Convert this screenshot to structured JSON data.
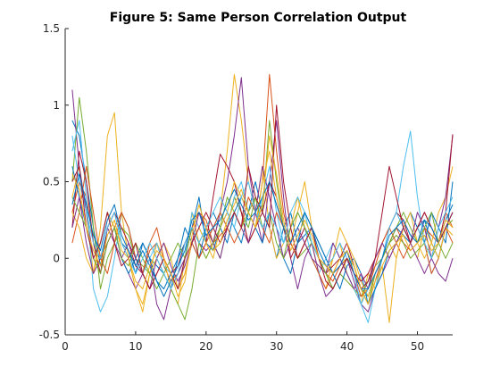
{
  "chart_data": {
    "type": "line",
    "title": "Figure 5: Same Person Correlation Output",
    "xlabel": "",
    "ylabel": "",
    "xlim": [
      0,
      55
    ],
    "ylim": [
      -0.5,
      1.5
    ],
    "xticks": [
      0,
      10,
      20,
      30,
      40,
      50
    ],
    "yticks": [
      -0.5,
      0,
      0.5,
      1,
      1.5
    ],
    "ytick_labels": [
      "-0.5",
      "0",
      "0.5",
      "1",
      "1.5"
    ],
    "grid": false,
    "legend": "none",
    "x": [
      1,
      2,
      3,
      4,
      5,
      6,
      7,
      8,
      9,
      10,
      11,
      12,
      13,
      14,
      15,
      16,
      17,
      18,
      19,
      20,
      21,
      22,
      23,
      24,
      25,
      26,
      27,
      28,
      29,
      30,
      31,
      32,
      33,
      34,
      35,
      36,
      37,
      38,
      39,
      40,
      41,
      42,
      43,
      44,
      45,
      46,
      47,
      48,
      49,
      50,
      51,
      52,
      53,
      54,
      55
    ],
    "series": [
      {
        "color": "#0072BD",
        "values": [
          0.9,
          0.8,
          0.5,
          0.2,
          -0.05,
          0.2,
          0.3,
          0.1,
          0.05,
          -0.1,
          0.1,
          0.0,
          -0.05,
          -0.1,
          -0.2,
          0.0,
          0.1,
          0.2,
          0.4,
          0.1,
          0.05,
          0.2,
          0.3,
          0.2,
          0.1,
          0.3,
          0.5,
          0.3,
          0.2,
          0.0,
          0.2,
          0.3,
          0.1,
          0.15,
          0.2,
          0.1,
          0.0,
          -0.1,
          -0.05,
          0.0,
          -0.1,
          -0.2,
          -0.25,
          -0.1,
          0.0,
          0.1,
          0.2,
          0.15,
          0.1,
          0.2,
          0.25,
          0.1,
          0.0,
          0.2,
          0.3
        ]
      },
      {
        "color": "#D95319",
        "values": [
          0.3,
          0.5,
          0.4,
          0.1,
          0.0,
          0.1,
          0.2,
          0.3,
          0.2,
          0.0,
          -0.1,
          0.05,
          0.1,
          -0.05,
          -0.15,
          -0.1,
          0.0,
          0.2,
          0.3,
          0.25,
          0.1,
          0.15,
          0.2,
          0.4,
          0.3,
          0.1,
          0.2,
          0.5,
          1.2,
          0.7,
          0.3,
          0.1,
          0.0,
          0.1,
          0.2,
          0.0,
          -0.1,
          -0.15,
          -0.05,
          0.0,
          -0.1,
          -0.2,
          -0.3,
          -0.15,
          0.0,
          0.1,
          0.2,
          0.1,
          0.05,
          0.1,
          0.2,
          0.15,
          0.1,
          0.3,
          0.2
        ]
      },
      {
        "color": "#EDB120",
        "values": [
          0.4,
          0.6,
          0.3,
          -0.1,
          0.2,
          0.8,
          0.95,
          0.3,
          0.0,
          -0.2,
          -0.35,
          -0.1,
          0.1,
          0.0,
          -0.2,
          -0.3,
          0.0,
          0.3,
          0.1,
          0.0,
          0.1,
          0.3,
          0.7,
          1.2,
          0.9,
          0.5,
          0.3,
          0.6,
          0.2,
          0.0,
          0.1,
          0.2,
          0.4,
          0.2,
          0.1,
          -0.1,
          -0.2,
          0.0,
          0.1,
          -0.1,
          -0.2,
          -0.3,
          -0.1,
          -0.2,
          -0.05,
          -0.42,
          0.0,
          0.2,
          0.1,
          0.0,
          0.2,
          0.1,
          0.3,
          0.4,
          0.6
        ]
      },
      {
        "color": "#7E2F8E",
        "values": [
          1.1,
          0.6,
          0.3,
          0.0,
          -0.1,
          0.1,
          0.2,
          0.0,
          -0.1,
          -0.2,
          -0.1,
          0.0,
          -0.3,
          -0.4,
          -0.2,
          -0.1,
          0.0,
          0.2,
          0.1,
          0.05,
          0.1,
          0.3,
          0.5,
          0.8,
          1.18,
          0.6,
          0.3,
          0.1,
          0.5,
          0.9,
          0.4,
          0.0,
          -0.2,
          0.0,
          0.1,
          -0.1,
          -0.25,
          -0.2,
          -0.1,
          0.0,
          -0.15,
          -0.3,
          -0.35,
          -0.2,
          -0.1,
          0.0,
          0.1,
          0.2,
          0.1,
          0.0,
          -0.1,
          0.0,
          0.2,
          0.4,
          0.8
        ]
      },
      {
        "color": "#77AC30",
        "values": [
          0.5,
          1.05,
          0.7,
          0.2,
          -0.2,
          0.0,
          0.1,
          0.2,
          0.15,
          0.0,
          -0.05,
          -0.1,
          0.0,
          -0.1,
          -0.2,
          -0.3,
          -0.4,
          -0.2,
          0.1,
          0.2,
          0.1,
          0.0,
          0.2,
          0.4,
          0.3,
          0.2,
          0.4,
          0.3,
          0.9,
          0.5,
          0.2,
          0.1,
          0.0,
          0.05,
          0.1,
          0.0,
          -0.1,
          -0.2,
          -0.1,
          -0.15,
          -0.2,
          -0.25,
          -0.15,
          -0.05,
          0.0,
          0.1,
          0.15,
          0.1,
          0.0,
          0.05,
          0.1,
          0.0,
          0.1,
          0.2,
          0.25
        ]
      },
      {
        "color": "#4DBEEE",
        "values": [
          0.7,
          0.9,
          0.4,
          -0.2,
          -0.35,
          -0.25,
          0.0,
          0.3,
          0.2,
          0.0,
          -0.1,
          0.0,
          0.1,
          -0.05,
          -0.1,
          -0.2,
          0.0,
          0.3,
          0.2,
          0.1,
          0.2,
          0.3,
          0.2,
          0.4,
          0.5,
          0.3,
          0.2,
          0.4,
          0.6,
          0.3,
          0.1,
          0.2,
          0.3,
          0.2,
          0.0,
          -0.1,
          0.0,
          0.1,
          0.0,
          -0.1,
          -0.2,
          -0.3,
          -0.42,
          -0.2,
          0.0,
          0.2,
          0.3,
          0.6,
          0.83,
          0.4,
          0.1,
          -0.1,
          0.0,
          0.2,
          0.3
        ]
      },
      {
        "color": "#A2142F",
        "values": [
          0.2,
          0.7,
          0.5,
          0.1,
          -0.1,
          0.2,
          0.3,
          0.2,
          0.1,
          -0.05,
          -0.1,
          -0.2,
          -0.1,
          0.0,
          -0.1,
          -0.05,
          0.1,
          0.2,
          0.0,
          0.1,
          0.4,
          0.68,
          0.6,
          0.5,
          0.3,
          0.1,
          0.2,
          0.3,
          0.5,
          0.4,
          0.2,
          0.0,
          0.1,
          0.2,
          0.1,
          0.0,
          -0.1,
          -0.05,
          0.0,
          0.1,
          -0.05,
          -0.2,
          -0.15,
          0.0,
          0.1,
          0.2,
          0.3,
          0.25,
          0.1,
          0.2,
          0.3,
          0.2,
          0.1,
          0.3,
          0.81
        ]
      },
      {
        "color": "#0072BD",
        "values": [
          0.6,
          0.4,
          0.2,
          0.0,
          0.1,
          0.3,
          0.2,
          0.0,
          -0.1,
          0.0,
          0.1,
          0.0,
          -0.15,
          -0.2,
          -0.1,
          0.0,
          0.2,
          0.1,
          0.0,
          0.2,
          0.3,
          0.2,
          0.1,
          0.3,
          0.4,
          0.3,
          0.2,
          0.1,
          0.3,
          0.2,
          0.0,
          -0.1,
          0.1,
          0.3,
          0.2,
          0.1,
          0.0,
          -0.1,
          -0.2,
          -0.05,
          0.0,
          -0.1,
          -0.3,
          -0.2,
          -0.1,
          0.05,
          0.1,
          0.2,
          0.3,
          0.2,
          0.1,
          0.3,
          0.2,
          0.1,
          0.5
        ]
      },
      {
        "color": "#D95319",
        "values": [
          0.1,
          0.3,
          0.6,
          0.3,
          0.0,
          -0.1,
          0.1,
          0.3,
          0.2,
          0.0,
          -0.1,
          0.1,
          0.2,
          0.0,
          -0.1,
          -0.2,
          -0.1,
          0.1,
          0.0,
          0.1,
          0.2,
          0.3,
          0.2,
          0.1,
          0.2,
          0.4,
          0.3,
          0.2,
          0.1,
          0.3,
          0.2,
          0.1,
          0.0,
          0.1,
          0.0,
          -0.1,
          -0.2,
          -0.1,
          0.0,
          0.05,
          -0.1,
          -0.25,
          -0.2,
          -0.05,
          0.1,
          0.2,
          0.1,
          0.0,
          0.1,
          0.2,
          0.1,
          -0.1,
          0.0,
          0.2,
          0.1
        ]
      },
      {
        "color": "#EDB120",
        "values": [
          0.3,
          0.2,
          0.0,
          -0.1,
          0.1,
          0.3,
          0.2,
          0.1,
          0.0,
          -0.2,
          -0.3,
          -0.1,
          0.0,
          0.1,
          0.0,
          -0.2,
          -0.1,
          0.1,
          0.2,
          0.1,
          0.0,
          0.2,
          0.3,
          0.5,
          0.4,
          0.3,
          0.2,
          0.5,
          0.7,
          0.4,
          0.2,
          0.1,
          0.3,
          0.5,
          0.2,
          0.0,
          -0.1,
          0.0,
          0.2,
          0.1,
          0.0,
          -0.15,
          -0.25,
          -0.1,
          0.0,
          0.1,
          0.0,
          0.2,
          0.3,
          0.1,
          0.0,
          0.1,
          0.0,
          0.2,
          0.15
        ]
      },
      {
        "color": "#7E2F8E",
        "values": [
          0.2,
          0.4,
          0.1,
          -0.1,
          0.0,
          0.2,
          0.1,
          0.0,
          0.1,
          0.0,
          -0.1,
          -0.2,
          0.0,
          0.1,
          -0.05,
          -0.15,
          -0.05,
          0.1,
          0.3,
          0.2,
          0.1,
          0.0,
          0.2,
          0.3,
          0.2,
          0.1,
          0.3,
          0.6,
          0.4,
          0.2,
          0.0,
          0.1,
          0.2,
          0.1,
          0.0,
          -0.05,
          -0.1,
          0.1,
          0.0,
          -0.1,
          -0.2,
          -0.1,
          -0.2,
          0.0,
          0.1,
          0.0,
          0.1,
          0.2,
          0.1,
          0.3,
          0.2,
          0.0,
          -0.1,
          -0.15,
          0.0
        ]
      },
      {
        "color": "#77AC30",
        "values": [
          0.4,
          0.3,
          0.2,
          0.0,
          -0.1,
          0.1,
          0.2,
          0.0,
          -0.05,
          0.1,
          0.0,
          -0.1,
          -0.2,
          -0.1,
          0.0,
          0.1,
          0.0,
          0.2,
          0.1,
          0.0,
          0.1,
          0.2,
          0.4,
          0.3,
          0.2,
          0.3,
          0.4,
          0.2,
          0.3,
          0.1,
          0.0,
          0.2,
          0.3,
          0.2,
          0.1,
          0.0,
          -0.1,
          -0.2,
          -0.1,
          0.0,
          -0.05,
          -0.2,
          -0.3,
          -0.1,
          0.0,
          0.1,
          0.2,
          0.3,
          0.2,
          0.1,
          0.2,
          0.3,
          0.1,
          0.0,
          0.1
        ]
      },
      {
        "color": "#4DBEEE",
        "values": [
          0.8,
          0.5,
          0.3,
          0.1,
          0.0,
          0.2,
          0.3,
          0.1,
          0.0,
          -0.1,
          0.0,
          0.1,
          0.0,
          -0.1,
          -0.2,
          -0.1,
          0.1,
          0.2,
          0.1,
          0.2,
          0.3,
          0.4,
          0.3,
          0.2,
          0.4,
          0.5,
          0.3,
          0.2,
          0.3,
          0.2,
          0.1,
          0.3,
          0.4,
          0.3,
          0.1,
          0.0,
          -0.05,
          0.0,
          0.1,
          0.0,
          -0.1,
          -0.3,
          -0.2,
          -0.1,
          0.0,
          0.2,
          0.3,
          0.2,
          0.1,
          0.2,
          0.1,
          0.0,
          0.2,
          0.3,
          0.4
        ]
      },
      {
        "color": "#A2142F",
        "values": [
          0.5,
          0.6,
          0.2,
          0.0,
          0.1,
          0.3,
          0.1,
          -0.05,
          0.0,
          0.1,
          -0.1,
          -0.2,
          -0.1,
          0.0,
          -0.1,
          -0.2,
          0.0,
          0.1,
          0.2,
          0.3,
          0.2,
          0.1,
          0.2,
          0.3,
          0.2,
          0.6,
          0.4,
          0.3,
          0.2,
          1.0,
          0.5,
          0.2,
          0.0,
          0.1,
          0.2,
          0.0,
          -0.15,
          -0.2,
          -0.1,
          0.0,
          -0.1,
          -0.15,
          -0.1,
          0.0,
          0.3,
          0.6,
          0.4,
          0.2,
          0.1,
          0.2,
          0.3,
          0.2,
          0.1,
          0.2,
          0.3
        ]
      },
      {
        "color": "#0072BD",
        "values": [
          0.35,
          0.55,
          0.35,
          0.15,
          0.05,
          0.25,
          0.35,
          0.15,
          0.05,
          -0.05,
          0.05,
          -0.05,
          -0.15,
          -0.25,
          -0.15,
          -0.05,
          0.05,
          0.25,
          0.3,
          0.15,
          0.2,
          0.25,
          0.35,
          0.45,
          0.35,
          0.25,
          0.3,
          0.4,
          0.5,
          0.35,
          0.2,
          0.1,
          0.2,
          0.3,
          0.2,
          0.05,
          -0.05,
          -0.1,
          -0.05,
          0.05,
          -0.1,
          -0.2,
          -0.2,
          -0.1,
          0.0,
          0.15,
          0.2,
          0.25,
          0.15,
          0.1,
          0.25,
          0.2,
          0.1,
          0.25,
          0.35
        ]
      },
      {
        "color": "#EDB120",
        "values": [
          0.55,
          0.45,
          0.2,
          0.05,
          -0.05,
          0.15,
          0.25,
          0.05,
          0.0,
          -0.15,
          -0.2,
          -0.05,
          0.05,
          0.0,
          -0.1,
          -0.25,
          -0.15,
          0.15,
          0.35,
          0.2,
          0.05,
          0.1,
          0.25,
          0.35,
          0.45,
          0.3,
          0.2,
          0.35,
          0.8,
          0.55,
          0.25,
          0.05,
          0.15,
          0.25,
          0.15,
          0.0,
          -0.05,
          -0.1,
          0.0,
          0.05,
          -0.05,
          -0.2,
          -0.3,
          -0.15,
          -0.05,
          0.05,
          0.1,
          0.15,
          0.05,
          0.1,
          0.15,
          0.05,
          0.1,
          0.25,
          0.2
        ]
      }
    ]
  }
}
